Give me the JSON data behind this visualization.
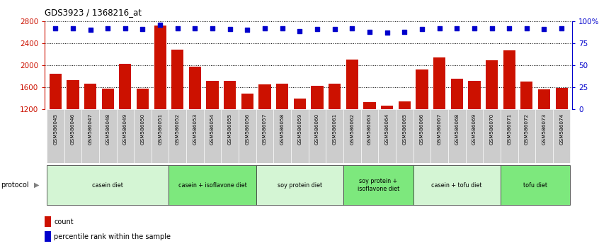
{
  "title": "GDS3923 / 1368216_at",
  "samples": [
    "GSM586045",
    "GSM586046",
    "GSM586047",
    "GSM586048",
    "GSM586049",
    "GSM586050",
    "GSM586051",
    "GSM586052",
    "GSM586053",
    "GSM586054",
    "GSM586055",
    "GSM586056",
    "GSM586057",
    "GSM586058",
    "GSM586059",
    "GSM586060",
    "GSM586061",
    "GSM586062",
    "GSM586063",
    "GSM586064",
    "GSM586065",
    "GSM586066",
    "GSM586067",
    "GSM586068",
    "GSM586069",
    "GSM586070",
    "GSM586071",
    "GSM586072",
    "GSM586073",
    "GSM586074"
  ],
  "counts": [
    1840,
    1730,
    1670,
    1575,
    2030,
    1580,
    2730,
    2280,
    1970,
    1720,
    1710,
    1480,
    1650,
    1660,
    1390,
    1620,
    1660,
    2100,
    1330,
    1270,
    1340,
    1920,
    2140,
    1760,
    1710,
    2090,
    2270,
    1700,
    1560,
    1590
  ],
  "percentile_ranks": [
    92,
    92,
    90,
    92,
    92,
    91,
    96,
    92,
    92,
    92,
    91,
    90,
    92,
    92,
    89,
    91,
    91,
    92,
    88,
    87,
    88,
    91,
    92,
    92,
    92,
    92,
    92,
    92,
    91,
    92
  ],
  "groups": [
    {
      "label": "casein diet",
      "start": 0,
      "end": 7,
      "color": "#d4f5d4"
    },
    {
      "label": "casein + isoflavone diet",
      "start": 7,
      "end": 12,
      "color": "#7de87d"
    },
    {
      "label": "soy protein diet",
      "start": 12,
      "end": 17,
      "color": "#d4f5d4"
    },
    {
      "label": "soy protein +\nisoflavone diet",
      "start": 17,
      "end": 21,
      "color": "#7de87d"
    },
    {
      "label": "casein + tofu diet",
      "start": 21,
      "end": 26,
      "color": "#d4f5d4"
    },
    {
      "label": "tofu diet",
      "start": 26,
      "end": 30,
      "color": "#7de87d"
    }
  ],
  "bar_color": "#cc1100",
  "dot_color": "#0000cc",
  "ylim_left": [
    1200,
    2800
  ],
  "ylim_right": [
    0,
    100
  ],
  "yticks_left": [
    1200,
    1600,
    2000,
    2400,
    2800
  ],
  "yticks_right": [
    0,
    25,
    50,
    75,
    100
  ],
  "background_color": "#ffffff",
  "header_bg": "#cccccc"
}
